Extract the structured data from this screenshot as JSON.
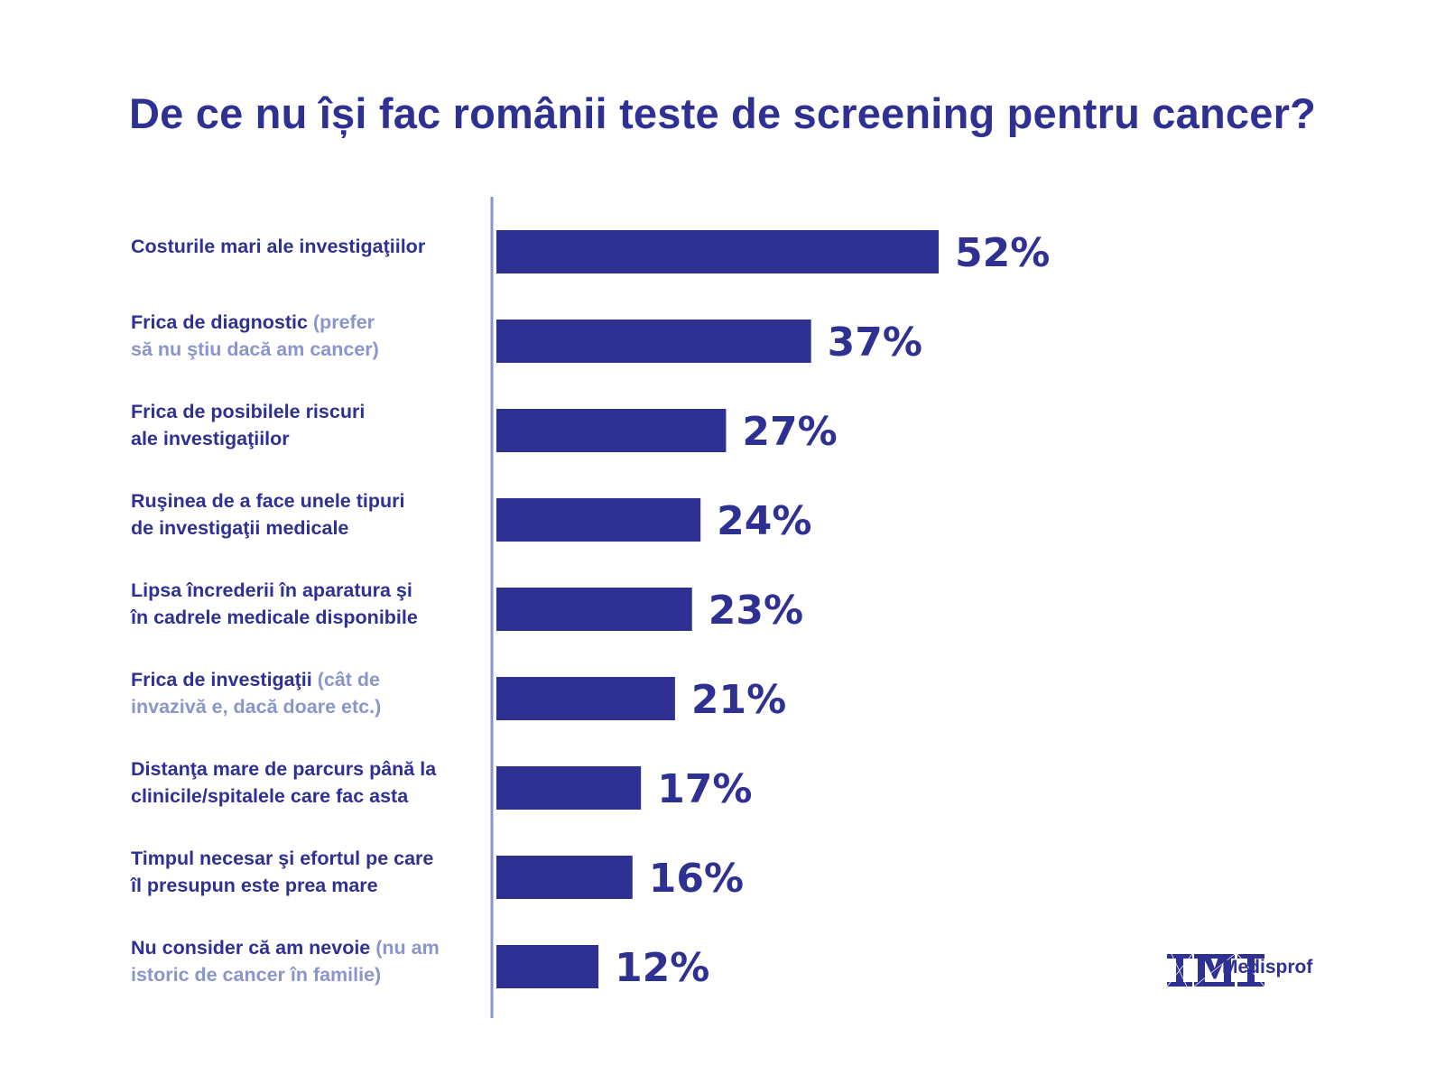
{
  "title": "De ce nu își fac românii teste de screening pentru cancer?",
  "brand": {
    "name": "Medisprof",
    "logo_icon": "medisprof-logo-icon"
  },
  "colors": {
    "bar": "#2e3192",
    "text": "#2e3192",
    "subtext": "#8a95cc",
    "axis": "#8a95cc"
  },
  "chart_data": {
    "type": "bar",
    "orientation": "horizontal",
    "title": "De ce nu își fac românii teste de screening pentru cancer?",
    "categories": [
      "Costurile mari ale investigaţiilor",
      "Frica de diagnostic (prefer să nu ştiu dacă am cancer)",
      "Frica de posibilele riscuri ale investigaţiilor",
      "Ruşinea de a face unele tipuri de investigaţii medicale",
      "Lipsa încrederii în aparatura şi în cadrele medicale disponibile",
      "Frica de investigaţii (cât de invazivă e, dacă doare etc.)",
      "Distanţa mare de parcurs până la clinicile/spitalele care fac asta",
      "Timpul necesar şi efortul pe care îl presupun este prea mare",
      "Nu consider că am nevoie (nu am istoric de cancer în familie)"
    ],
    "values": [
      52,
      37,
      27,
      24,
      23,
      21,
      17,
      16,
      12
    ],
    "value_labels": [
      "52%",
      "37%",
      "27%",
      "24%",
      "23%",
      "21%",
      "17%",
      "16%",
      "12%"
    ],
    "label_lines": [
      [
        {
          "text": "Costurile mari ale investigaţiilor",
          "muted": false
        }
      ],
      [
        {
          "text": "Frica de diagnostic",
          "muted": false
        },
        {
          "text": " (prefer",
          "muted": true
        },
        {
          "text": "să nu ştiu dacă am cancer)",
          "muted": true,
          "newline": true
        }
      ],
      [
        {
          "text": "Frica de posibilele riscuri",
          "muted": false
        },
        {
          "text": "ale investigaţiilor",
          "muted": false,
          "newline": true
        }
      ],
      [
        {
          "text": "Ruşinea de a face unele tipuri",
          "muted": false
        },
        {
          "text": "de investigaţii medicale",
          "muted": false,
          "newline": true
        }
      ],
      [
        {
          "text": "Lipsa încrederii în aparatura şi",
          "muted": false
        },
        {
          "text": "în cadrele medicale disponibile",
          "muted": false,
          "newline": true
        }
      ],
      [
        {
          "text": "Frica de investigaţii",
          "muted": false
        },
        {
          "text": " (cât de",
          "muted": true
        },
        {
          "text": "invazivă e, dacă doare etc.)",
          "muted": true,
          "newline": true
        }
      ],
      [
        {
          "text": "Distanţa mare de parcurs până la",
          "muted": false
        },
        {
          "text": "clinicile/spitalele care fac asta",
          "muted": false,
          "newline": true
        }
      ],
      [
        {
          "text": "Timpul necesar şi efortul pe care",
          "muted": false
        },
        {
          "text": "îl presupun este prea mare",
          "muted": false,
          "newline": true
        }
      ],
      [
        {
          "text": "Nu consider că am nevoie",
          "muted": false
        },
        {
          "text": " (nu am",
          "muted": true
        },
        {
          "text": "istoric de cancer în familie)",
          "muted": true,
          "newline": true
        }
      ]
    ],
    "xlabel": "",
    "ylabel": "",
    "xlim": [
      0,
      52
    ],
    "grid": false,
    "legend": "none"
  }
}
